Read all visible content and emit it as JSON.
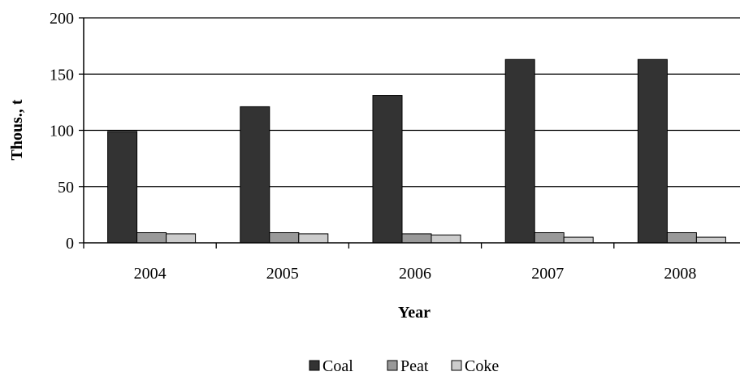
{
  "chart_data": {
    "type": "bar",
    "categories": [
      "2004",
      "2005",
      "2006",
      "2007",
      "2008"
    ],
    "series": [
      {
        "name": "Coal",
        "values": [
          99,
          121,
          131,
          163,
          163
        ],
        "color": "#333333"
      },
      {
        "name": "Peat",
        "values": [
          9,
          9,
          8,
          9,
          9
        ],
        "color": "#999999"
      },
      {
        "name": "Coke",
        "values": [
          8,
          8,
          7,
          5,
          5
        ],
        "color": "#cccccc"
      }
    ],
    "xlabel": "Year",
    "ylabel": "Thous., t",
    "ylim": [
      0,
      200
    ],
    "yticks": [
      0,
      50,
      100,
      150,
      200
    ],
    "grid": true,
    "legend_position": "bottom"
  }
}
